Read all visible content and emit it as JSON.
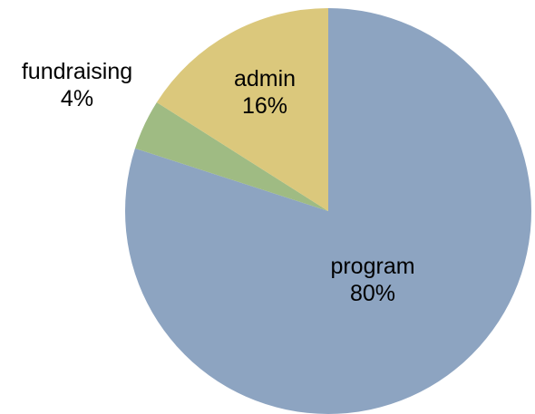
{
  "chart_data": {
    "type": "pie",
    "title": "",
    "slices": [
      {
        "name": "program",
        "label": "80%",
        "value": 80,
        "color": "#8da4c1"
      },
      {
        "name": "fundraising",
        "label": "4%",
        "value": 4,
        "color": "#9fbb83"
      },
      {
        "name": "admin",
        "label": "16%",
        "value": 16,
        "color": "#dbc87c"
      }
    ],
    "start_angle_deg": 0,
    "direction": "clockwise",
    "label_placement": {
      "program": "inside",
      "fundraising": "outside-left",
      "admin": "inside"
    }
  }
}
